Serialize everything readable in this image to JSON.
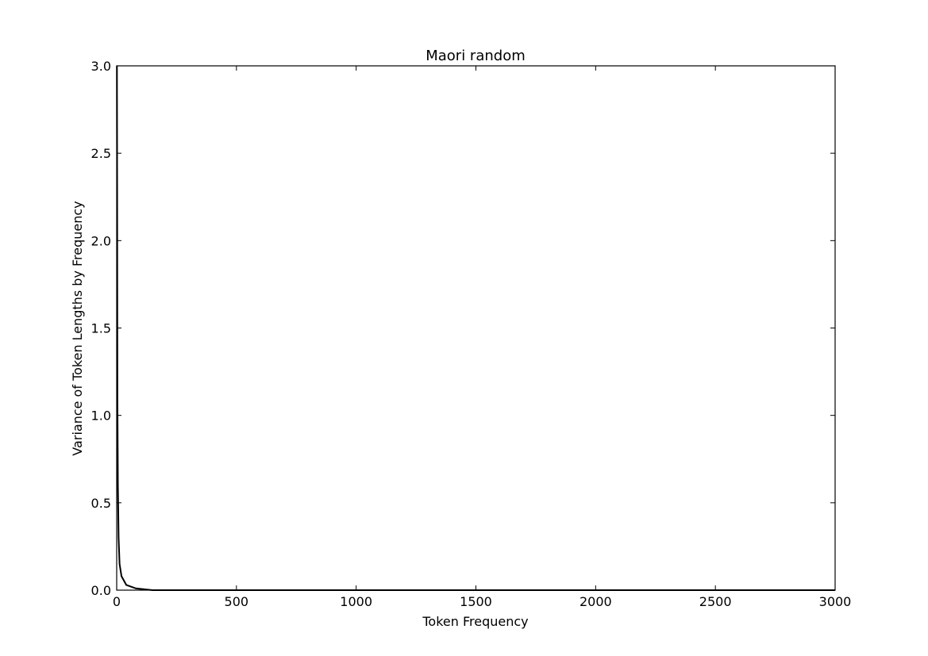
{
  "chart_data": {
    "type": "line",
    "title": "Maori random",
    "xlabel": "Token Frequency",
    "ylabel": "Variance of Token Lengths by Frequency",
    "xlim": [
      0,
      3000
    ],
    "ylim": [
      0,
      3.0
    ],
    "xticks": [
      0,
      500,
      1000,
      1500,
      2000,
      2500,
      3000
    ],
    "xtick_labels": [
      "0",
      "500",
      "1000",
      "1500",
      "2000",
      "2500",
      "3000"
    ],
    "yticks": [
      0,
      0.5,
      1.0,
      1.5,
      2.0,
      2.5,
      3.0
    ],
    "ytick_labels": [
      "0.0",
      "0.5",
      "1.0",
      "1.5",
      "2.0",
      "2.5",
      "3.0"
    ],
    "grid": false,
    "series": [
      {
        "color": "#000000",
        "x": [
          1,
          2,
          3,
          5,
          8,
          12,
          20,
          40,
          80,
          150,
          320,
          1000,
          3000
        ],
        "y": [
          3.0,
          2.2,
          1.1,
          0.6,
          0.3,
          0.15,
          0.08,
          0.03,
          0.01,
          0.0,
          0.0,
          0.0,
          0.0
        ]
      }
    ]
  }
}
